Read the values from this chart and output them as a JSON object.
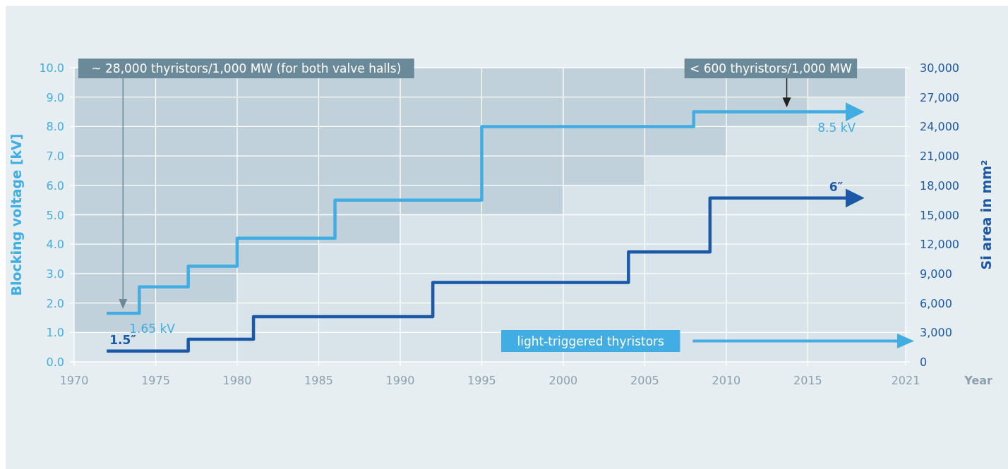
{
  "chart_data": {
    "type": "step",
    "xlabel": "Year",
    "ylabel": "Blocking voltage [kV]",
    "y2label": "Si area in mm²",
    "xlim": [
      1970,
      2021
    ],
    "xticks": [
      1970,
      1975,
      1980,
      1985,
      1990,
      1995,
      2000,
      2005,
      2010,
      2015,
      2021
    ],
    "ylim": [
      0,
      10
    ],
    "yticks": [
      {
        "value": 0,
        "label": "0.0"
      },
      {
        "value": 1,
        "label": "1.0"
      },
      {
        "value": 2,
        "label": "2.0"
      },
      {
        "value": 3,
        "label": "3.0"
      },
      {
        "value": 4,
        "label": "4.0"
      },
      {
        "value": 5,
        "label": "5.0"
      },
      {
        "value": 6,
        "label": "6.0"
      },
      {
        "value": 7,
        "label": "7.0"
      },
      {
        "value": 8,
        "label": "8.0"
      },
      {
        "value": 9,
        "label": "9.0"
      },
      {
        "value": 10,
        "label": "10.0"
      }
    ],
    "y2lim": [
      0,
      30000
    ],
    "y2ticks": [
      0,
      {
        "value": 3000,
        "label": "3,000"
      },
      {
        "value": 6000,
        "label": "6,000"
      },
      {
        "value": 9000,
        "label": "9,000"
      },
      {
        "value": 12000,
        "label": "12,000"
      },
      {
        "value": 15000,
        "label": "15,000"
      },
      {
        "value": 18000,
        "label": "18,000"
      },
      {
        "value": 21000,
        "label": "21,000"
      },
      {
        "value": 24000,
        "label": "24,000"
      },
      {
        "value": 27000,
        "label": "27,000"
      },
      {
        "value": 30000,
        "label": "30,000"
      }
    ],
    "grid": true,
    "series": [
      {
        "type": "area",
        "color": "#d8e3ea",
        "x": [
          1970,
          1975,
          1980,
          1985,
          1990,
          2000,
          2005,
          2010,
          2015,
          2021
        ],
        "values": [
          1,
          2,
          3,
          4,
          5,
          6,
          7,
          8,
          9,
          9
        ]
      },
      {
        "color": "#41ade2",
        "x": [
          1972,
          1974,
          1977,
          1980,
          1986,
          1995,
          2008,
          2017.5
        ],
        "values": [
          1.65,
          2.55,
          3.25,
          4.2,
          5.5,
          8.0,
          8.5,
          8.5
        ],
        "value_labels": [
          "1.65 kV",
          null,
          null,
          null,
          null,
          null,
          null,
          "8.5 kV"
        ]
      },
      {
        "color": "#1b59a8",
        "axis": "y2",
        "x": [
          1972,
          1977,
          1981,
          1992,
          2004,
          2009,
          2017.5
        ],
        "values": [
          1100,
          2300,
          4600,
          8100,
          11200,
          16700,
          16700
        ]
      }
    ],
    "annotations": [
      "~ 28,000 thyristors/1,000 MW (for both valve halls)",
      "< 600 thyristors/1,000 MW",
      "light-triggered thyristors",
      {
        "text": "1.5″",
        "x": 1972,
        "y": 0.37
      },
      {
        "text": "6″",
        "x": 2017.5,
        "y": 5.57
      }
    ]
  }
}
